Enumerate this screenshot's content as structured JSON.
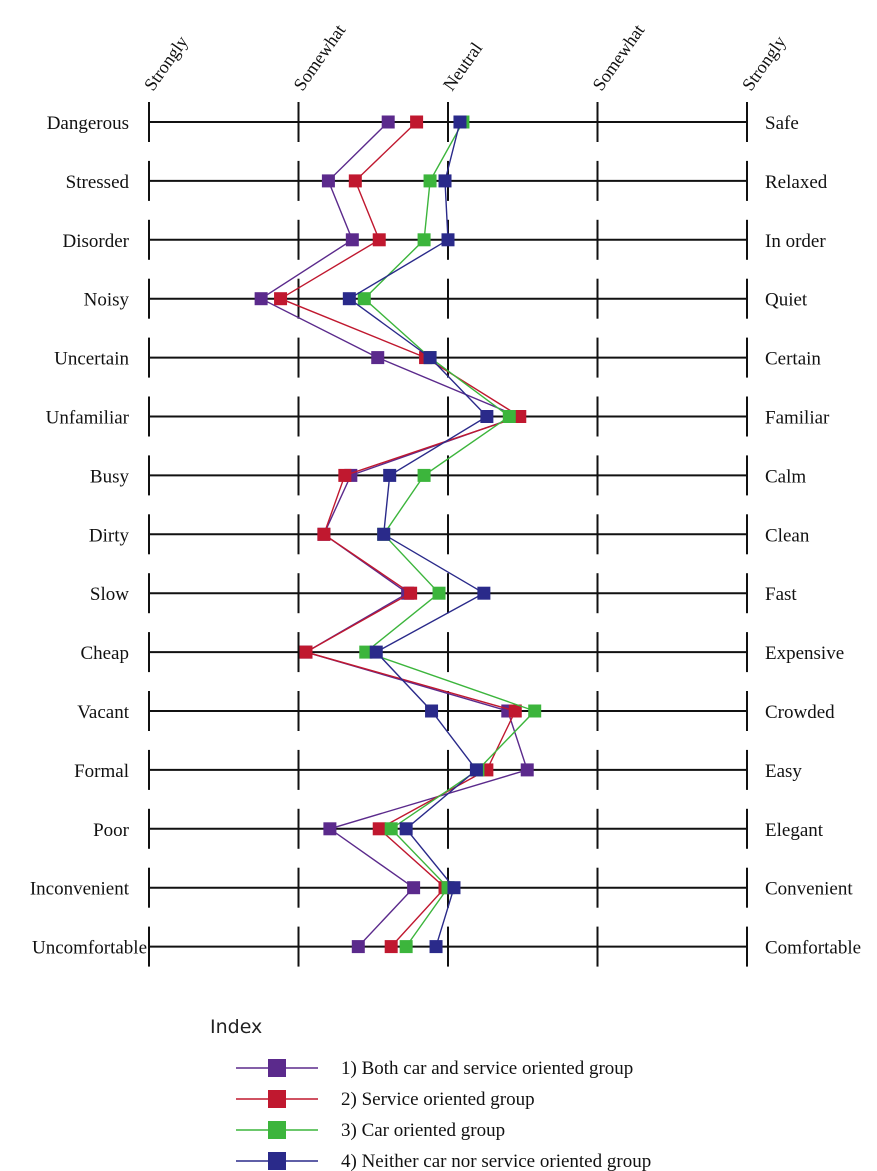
{
  "chart_data": {
    "type": "line",
    "scale_labels": [
      "Strongly",
      "Somewhat",
      "Neutral",
      "Somewhat",
      "Strongly"
    ],
    "scale_values": [
      -2,
      -1,
      0,
      1,
      2
    ],
    "xlim": [
      -2,
      2
    ],
    "categories": [
      {
        "left": "Dangerous",
        "right": "Safe"
      },
      {
        "left": "Stressed",
        "right": "Relaxed"
      },
      {
        "left": "Disorder",
        "right": "In order"
      },
      {
        "left": "Noisy",
        "right": "Quiet"
      },
      {
        "left": "Uncertain",
        "right": "Certain"
      },
      {
        "left": "Unfamiliar",
        "right": "Familiar"
      },
      {
        "left": "Busy",
        "right": "Calm"
      },
      {
        "left": "Dirty",
        "right": "Clean"
      },
      {
        "left": "Slow",
        "right": "Fast"
      },
      {
        "left": "Cheap",
        "right": "Expensive"
      },
      {
        "left": "Vacant",
        "right": "Crowded"
      },
      {
        "left": "Formal",
        "right": "Easy"
      },
      {
        "left": "Poor",
        "right": "Elegant"
      },
      {
        "left": "Inconvenient",
        "right": "Convenient"
      },
      {
        "left": "Uncomfortable",
        "right": "Comfortable"
      }
    ],
    "series": [
      {
        "name": "1) Both car and service oriented group",
        "color": "#5b2a8c",
        "values": [
          -0.4,
          -0.8,
          -0.64,
          -1.25,
          -0.47,
          0.47,
          -0.65,
          -0.83,
          -0.27,
          -0.95,
          0.4,
          0.53,
          -0.79,
          -0.23,
          -0.6
        ]
      },
      {
        "name": "2) Service oriented group",
        "color": "#c0182f",
        "values": [
          -0.21,
          -0.62,
          -0.46,
          -1.12,
          -0.15,
          0.48,
          -0.69,
          -0.83,
          -0.25,
          -0.95,
          0.45,
          0.26,
          -0.46,
          -0.02,
          -0.38
        ]
      },
      {
        "name": "3) Car oriented group",
        "color": "#3cb53c",
        "values": [
          0.1,
          -0.12,
          -0.16,
          -0.56,
          -0.12,
          0.41,
          -0.16,
          -0.43,
          -0.06,
          -0.55,
          0.58,
          0.2,
          -0.38,
          0.0,
          -0.28
        ]
      },
      {
        "name": "4) Neither car nor service oriented group",
        "color": "#2a2a8a",
        "values": [
          0.08,
          -0.02,
          0.0,
          -0.66,
          -0.12,
          0.26,
          -0.39,
          -0.43,
          0.24,
          -0.48,
          -0.11,
          0.19,
          -0.28,
          0.04,
          -0.08
        ]
      }
    ],
    "grid": true,
    "legend": {
      "title": "Index",
      "position": "bottom"
    }
  }
}
